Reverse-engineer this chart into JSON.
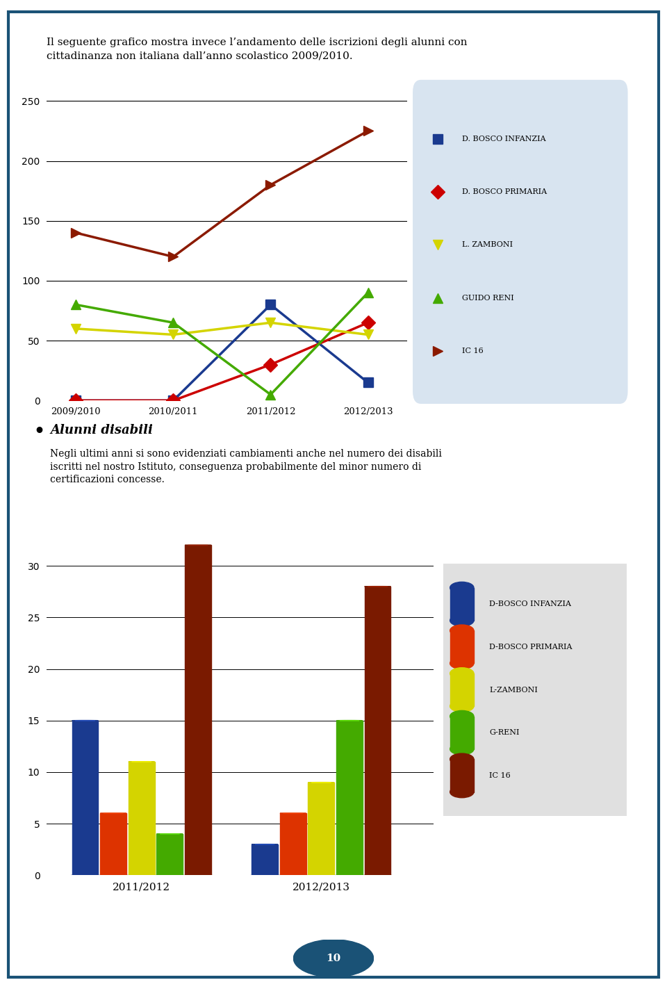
{
  "page_bg": "#ffffff",
  "border_color": "#1a5276",
  "top_text_line1": "Il seguente grafico mostra invece l’andamento delle iscrizioni degli alunni con",
  "top_text_line2": "cittadinanza non italiana dall’anno scolastico 2009/2010.",
  "line_chart": {
    "x_labels": [
      "2009/2010",
      "2010/2011",
      "2011/2012",
      "2012/2013"
    ],
    "x_ticks": [
      0,
      1,
      2,
      3
    ],
    "ylim": [
      0,
      260
    ],
    "yticks": [
      0,
      50,
      100,
      150,
      200,
      250
    ],
    "series": {
      "D. BOSCO INFANZIA": {
        "color": "#1a3a8f",
        "marker": "s",
        "values": [
          0,
          0,
          80,
          15
        ]
      },
      "D. BOSCO PRIMARIA": {
        "color": "#cc0000",
        "marker": "D",
        "values": [
          0,
          0,
          30,
          65
        ]
      },
      "L. ZAMBONI": {
        "color": "#d4d400",
        "marker": "v",
        "values": [
          60,
          55,
          65,
          55
        ]
      },
      "GUIDO RENI": {
        "color": "#44aa00",
        "marker": "^",
        "values": [
          80,
          65,
          5,
          90
        ]
      },
      "IC 16": {
        "color": "#8b1a00",
        "marker": ">",
        "values": [
          140,
          120,
          180,
          225
        ]
      }
    },
    "legend_bg": "#d8e4f0"
  },
  "bullet_text": "Alunni disabili",
  "body_text_line1": "Negli ultimi anni si sono evidenziati cambiamenti anche nel numero dei disabili",
  "body_text_line2": "iscritti nel nostro Istituto, conseguenza probabilmente del minor numero di",
  "body_text_line3": "certificazioni concesse.",
  "bar_chart": {
    "years": [
      "2011/2012",
      "2012/2013"
    ],
    "ylim": [
      0,
      35
    ],
    "yticks": [
      0,
      5,
      10,
      15,
      20,
      25,
      30
    ],
    "group_centers": [
      0.38,
      1.1
    ],
    "series": {
      "D-BOSCO INFANZIA": {
        "color": "#1a3a8f",
        "values": [
          15,
          3
        ]
      },
      "D-BOSCO PRIMARIA": {
        "color": "#dd3300",
        "values": [
          6,
          6
        ]
      },
      "L-ZAMBONI": {
        "color": "#d4d400",
        "values": [
          11,
          9
        ]
      },
      "G-RENI": {
        "color": "#44aa00",
        "values": [
          4,
          15
        ]
      },
      "IC 16": {
        "color": "#7a1a00",
        "values": [
          32,
          28
        ]
      }
    },
    "legend_bg": "#e0e0e0"
  },
  "page_number": "10",
  "page_num_bg": "#1a5276"
}
